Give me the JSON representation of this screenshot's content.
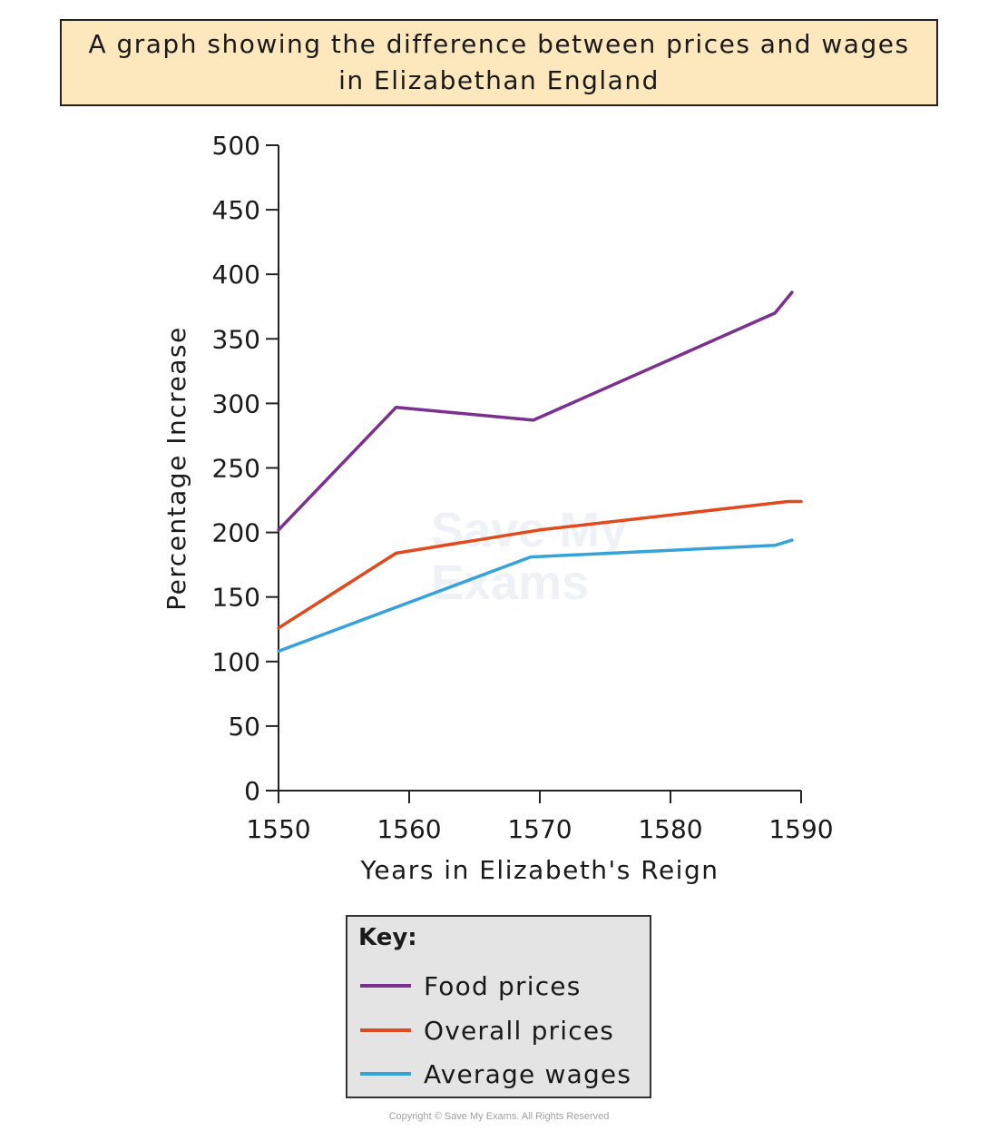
{
  "title": "A graph showing the difference between prices and wages in Elizabethan England",
  "chart_data": {
    "type": "line",
    "title": "A graph showing the difference between prices and wages in Elizabethan England",
    "xlabel": "Years in Elizabeth's Reign",
    "ylabel": "Percentage Increase",
    "xlim": [
      1550,
      1590
    ],
    "ylim": [
      0,
      500
    ],
    "xticks": [
      "1550",
      "1560",
      "1570",
      "1580",
      "1590"
    ],
    "yticks": [
      "0",
      "50",
      "100",
      "150",
      "200",
      "250",
      "300",
      "350",
      "400",
      "450",
      "500"
    ],
    "grid": false,
    "legend_title": "Key:",
    "legend_position": "bottom",
    "series": [
      {
        "name": "Food prices",
        "color": "#7b2f8e",
        "x": [
          1550,
          1559,
          1569.5,
          1588,
          1589.3
        ],
        "y": [
          202,
          297,
          287,
          370,
          386
        ]
      },
      {
        "name": "Overall prices",
        "color": "#e04a1c",
        "x": [
          1550,
          1559,
          1570,
          1589,
          1590
        ],
        "y": [
          126,
          184,
          202,
          224,
          224
        ]
      },
      {
        "name": "Average wages",
        "color": "#35a2da",
        "x": [
          1550,
          1569.3,
          1588,
          1589.3
        ],
        "y": [
          108,
          181,
          190,
          194
        ]
      }
    ]
  },
  "watermark": [
    "Save My",
    "Exams"
  ],
  "copyright": "Copyright © Save My Exams. All Rights Reserved"
}
